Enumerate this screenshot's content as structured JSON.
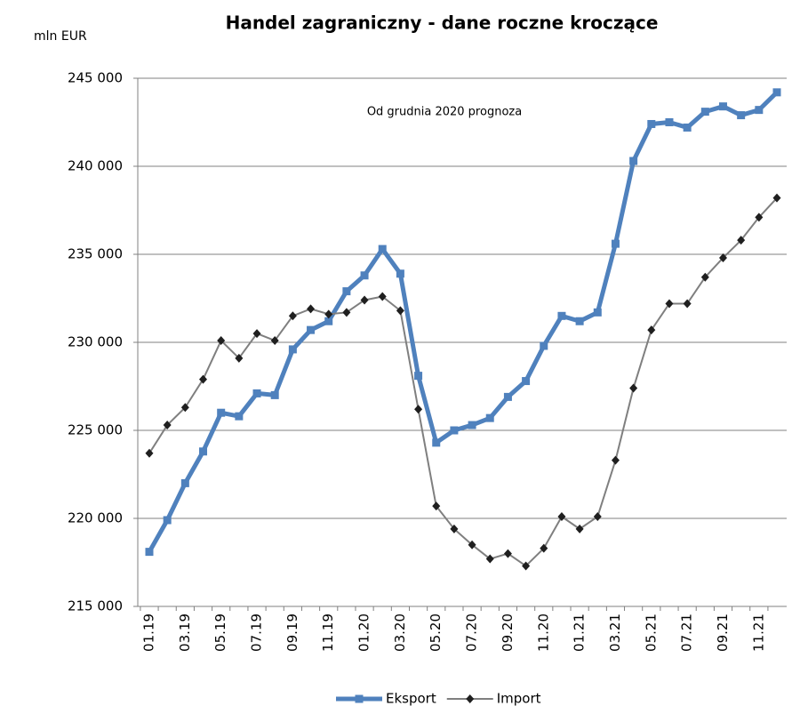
{
  "chart_data": {
    "type": "line",
    "title": "Handel zagraniczny - dane roczne kroczące",
    "y_label": "mln EUR",
    "annotation": "Od grudnia 2020 prognoza",
    "categories": [
      "01.19",
      null,
      "03.19",
      null,
      "05.19",
      null,
      "07.19",
      null,
      "09.19",
      null,
      "11.19",
      null,
      "01.20",
      null,
      "03.20",
      null,
      "05.20",
      null,
      "07.20",
      null,
      "09.20",
      null,
      "11.20",
      null,
      "01.21",
      null,
      "03.21",
      null,
      "05.21",
      null,
      "07.21",
      null,
      "09.21",
      null,
      "11.21",
      null
    ],
    "series": [
      {
        "name": "Eksport",
        "color": "#4f81bd",
        "marker": "square",
        "values": [
          218100,
          219900,
          222000,
          223800,
          226000,
          225800,
          227100,
          227000,
          229600,
          230700,
          231200,
          232900,
          233800,
          235300,
          233900,
          228100,
          224300,
          225000,
          225300,
          225700,
          226900,
          227800,
          229800,
          231500,
          231200,
          231700,
          235600,
          240300,
          242400,
          242500,
          242200,
          243100,
          243400,
          242900,
          243200,
          244200
        ]
      },
      {
        "name": "Import",
        "color": "#7f7f7f",
        "marker": "diamond",
        "values": [
          223700,
          225300,
          226300,
          227900,
          230100,
          229100,
          230500,
          230100,
          231500,
          231900,
          231600,
          231700,
          232400,
          232600,
          231800,
          226200,
          220700,
          219400,
          218500,
          217700,
          218000,
          217300,
          218300,
          220100,
          219400,
          220100,
          223300,
          227400,
          230700,
          232200,
          232200,
          233700,
          234800,
          235800,
          237100,
          238200
        ]
      }
    ],
    "ylim": [
      215000,
      245000
    ],
    "yticks": [
      {
        "value": 215000,
        "label": "215 000"
      },
      {
        "value": 220000,
        "label": "220 000"
      },
      {
        "value": 225000,
        "label": "225 000"
      },
      {
        "value": 230000,
        "label": "230 000"
      },
      {
        "value": 235000,
        "label": "235 000"
      },
      {
        "value": 240000,
        "label": "240 000"
      },
      {
        "value": 245000,
        "label": "245 000"
      }
    ],
    "grid": true,
    "legend": "bottom"
  }
}
